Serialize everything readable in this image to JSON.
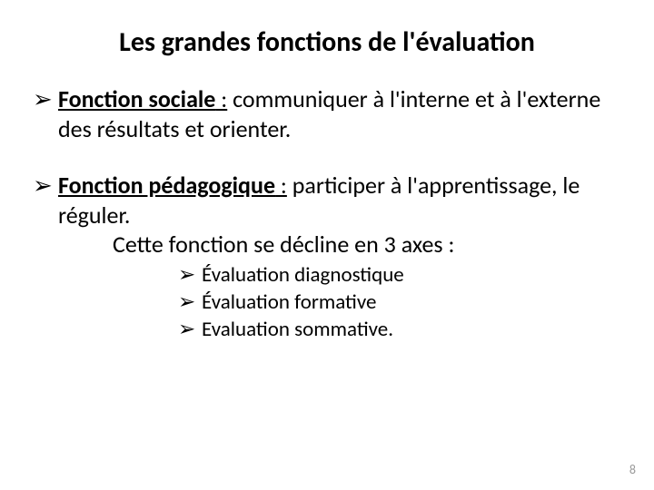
{
  "title": "Les grandes fonctions de l'évaluation",
  "arrow_glyph": "➢",
  "bullets": [
    {
      "term": "Fonction sociale",
      "colon": " :",
      "rest": " communiquer à l'interne et à l'externe des résultats et orienter."
    },
    {
      "term": "Fonction pédagogique",
      "colon": " :",
      "rest": " participer à l'apprentissage, le réguler.",
      "extra_line": "Cette fonction se décline en 3 axes :"
    }
  ],
  "sub_bullets": [
    "Évaluation diagnostique",
    "Évaluation formative",
    "Evaluation sommative."
  ],
  "page_number": "8",
  "colors": {
    "text": "#000000",
    "background": "#ffffff",
    "pagenum": "#9a9a9a"
  },
  "fonts": {
    "title_size_pt": 30,
    "body_size_pt": 26,
    "sub_size_pt": 23,
    "pagenum_size_pt": 14,
    "weight_title": 700,
    "weight_term": 700
  }
}
